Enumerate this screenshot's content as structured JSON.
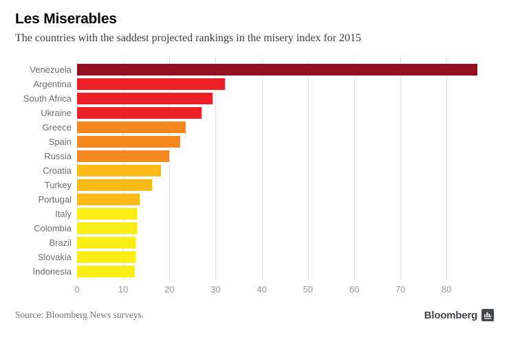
{
  "header": {
    "title": "Les Miserables",
    "subtitle": "The countries with the saddest projected rankings in the misery index for 2015"
  },
  "chart_data": {
    "type": "bar",
    "orientation": "horizontal",
    "title": "Les Miserables",
    "subtitle": "The countries with the saddest projected rankings in the misery index for 2015",
    "categories": [
      "Venezuela",
      "Argentina",
      "South Africa",
      "Ukraine",
      "Greece",
      "Spain",
      "Russia",
      "Croatia",
      "Turkey",
      "Portugal",
      "Italy",
      "Colombia",
      "Brazil",
      "Slovakia",
      "Indonesia"
    ],
    "values": [
      86.7,
      32.0,
      29.3,
      26.9,
      23.5,
      22.3,
      19.9,
      18.2,
      16.3,
      13.5,
      12.9,
      12.9,
      12.7,
      12.7,
      12.5
    ],
    "bar_colors": [
      "#930F1D",
      "#EB2127",
      "#EB2127",
      "#EB2127",
      "#F6881F",
      "#F6881F",
      "#F6881F",
      "#F9BA16",
      "#F9BA16",
      "#F9BA16",
      "#FBEE17",
      "#FBEE17",
      "#FBEE17",
      "#FBEE17",
      "#FBEE17"
    ],
    "x_ticks": [
      0,
      10,
      20,
      30,
      40,
      50,
      60,
      70,
      80
    ],
    "xlim": [
      0,
      88
    ],
    "xlabel": "",
    "ylabel": "",
    "grid": true,
    "legend": false
  },
  "footer": {
    "source": "Source: Bloomberg News surveys.",
    "brand": "Bloomberg",
    "brand_icon": "bar-chart-icon"
  },
  "colors": {
    "dark_red": "#930F1D",
    "red": "#EB2127",
    "orange": "#F6881F",
    "gold": "#F9BA16",
    "yellow": "#FBEE17",
    "gridline": "#E2E2E2",
    "tick_label": "#999999",
    "category_label": "#6F6F6F",
    "subtitle_text": "#3D3D3D",
    "source_text": "#757575",
    "brand_text": "#43464B"
  }
}
